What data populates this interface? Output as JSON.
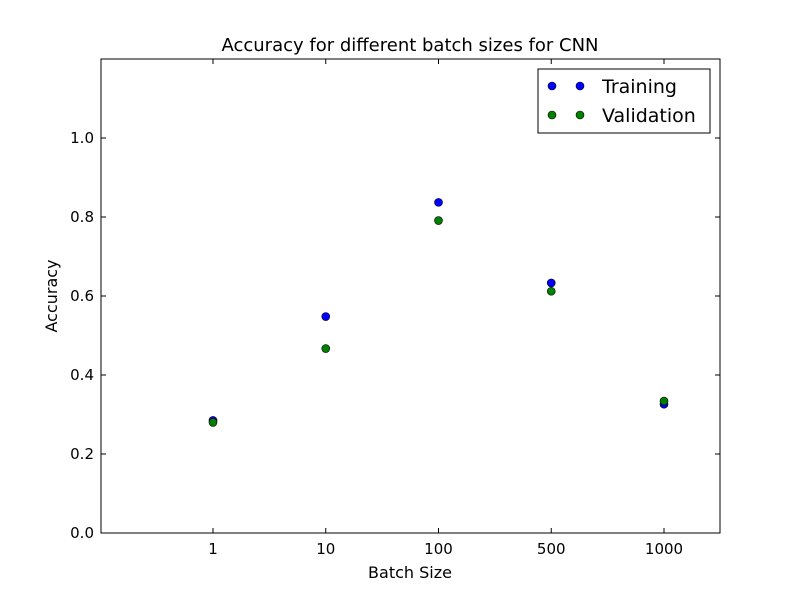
{
  "chart_data": {
    "type": "scatter",
    "title": "Accuracy for different batch sizes for CNN",
    "xlabel": "Batch Size",
    "ylabel": "Accuracy",
    "categories": [
      "1",
      "10",
      "100",
      "500",
      "1000"
    ],
    "ylim": [
      0.0,
      1.2
    ],
    "yticks": [
      "0.0",
      "0.2",
      "0.4",
      "0.6",
      "0.8",
      "1.0"
    ],
    "grid": false,
    "legend_position": "top-right",
    "series": [
      {
        "name": "Training",
        "color": "#0000ff",
        "values": [
          0.285,
          0.548,
          0.837,
          0.633,
          0.326
        ]
      },
      {
        "name": "Validation",
        "color": "#008000",
        "values": [
          0.28,
          0.467,
          0.791,
          0.612,
          0.334
        ]
      }
    ]
  }
}
